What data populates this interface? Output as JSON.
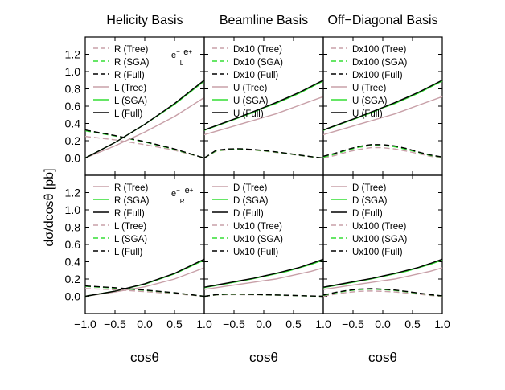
{
  "figure": {
    "ylabel": "dσ/dcosθ  [pb]",
    "xlabel": "cosθ",
    "xlim": [
      -1.0,
      1.0
    ],
    "ylim": [
      -0.2,
      1.4
    ],
    "y_ticks": [
      "0.0",
      "0.2",
      "0.4",
      "0.6",
      "0.8",
      "1.0",
      "1.2"
    ],
    "y_tick_values": [
      0.0,
      0.2,
      0.4,
      0.6,
      0.8,
      1.0,
      1.2
    ],
    "x_ticks_first": [
      "−1.0",
      "−0.5",
      "0.0",
      "0.5",
      "1.0"
    ],
    "x_ticks_other": [
      "−0.5",
      "0.0",
      "0.5",
      "1.0"
    ],
    "x_tick_values": [
      -1.0,
      -0.5,
      0.0,
      0.5,
      1.0
    ],
    "x_tick_values_other": [
      -0.5,
      0.0,
      0.5,
      1.0
    ]
  },
  "colors": {
    "tree": "#c8a0a8",
    "sga": "#33dd33",
    "full": "#000000"
  },
  "chart_data": [
    {
      "type": "line",
      "panel": "top-left",
      "title": "Helicity Basis",
      "annotation": {
        "main": "e",
        "sup1": "−",
        "sub": "L",
        "main2": "e",
        "sup2": "+"
      },
      "legend": [
        "R (Tree)",
        "R (SGA)",
        "R (Full)",
        "L (Tree)",
        "L (SGA)",
        "L (Full)"
      ],
      "x": [
        -1.0,
        -0.5,
        0.0,
        0.5,
        1.0
      ],
      "series": [
        {
          "name": "R (Tree)",
          "dash": true,
          "kind": "tree",
          "values": [
            0.25,
            0.21,
            0.155,
            0.09,
            0.0
          ]
        },
        {
          "name": "R (SGA)",
          "dash": true,
          "kind": "sga",
          "values": [
            0.315,
            0.255,
            0.185,
            0.1,
            0.0
          ]
        },
        {
          "name": "R (Full)",
          "dash": true,
          "kind": "full",
          "values": [
            0.325,
            0.26,
            0.19,
            0.105,
            0.0
          ]
        },
        {
          "name": "L (Tree)",
          "dash": false,
          "kind": "tree",
          "values": [
            0.0,
            0.14,
            0.3,
            0.48,
            0.7
          ]
        },
        {
          "name": "L (SGA)",
          "dash": false,
          "kind": "sga",
          "values": [
            0.0,
            0.18,
            0.39,
            0.62,
            0.89
          ]
        },
        {
          "name": "L (Full)",
          "dash": false,
          "kind": "full",
          "values": [
            0.0,
            0.18,
            0.39,
            0.63,
            0.9
          ]
        }
      ]
    },
    {
      "type": "line",
      "panel": "top-middle",
      "title": "Beamline Basis",
      "legend": [
        "Dx10 (Tree)",
        "Dx10 (SGA)",
        "Dx10 (Full)",
        "U (Tree)",
        "U (SGA)",
        "U (Full)"
      ],
      "x": [
        -1.0,
        -0.8,
        -0.6,
        -0.4,
        -0.2,
        0.0,
        0.2,
        0.4,
        0.6,
        0.8,
        1.0
      ],
      "series": [
        {
          "name": "Dx10 (Tree)",
          "dash": true,
          "kind": "tree",
          "values": [
            0.0,
            0.08,
            0.095,
            0.098,
            0.092,
            0.08,
            0.065,
            0.048,
            0.03,
            0.013,
            0.0
          ]
        },
        {
          "name": "Dx10 (SGA)",
          "dash": true,
          "kind": "sga",
          "values": [
            0.0,
            0.085,
            0.1,
            0.103,
            0.097,
            0.085,
            0.07,
            0.052,
            0.033,
            0.015,
            0.0
          ]
        },
        {
          "name": "Dx10 (Full)",
          "dash": true,
          "kind": "full",
          "values": [
            0.0,
            0.09,
            0.105,
            0.108,
            0.1,
            0.088,
            0.072,
            0.054,
            0.034,
            0.016,
            0.0
          ]
        },
        {
          "name": "U (Tree)",
          "dash": false,
          "kind": "tree",
          "values": [
            0.27,
            0.31,
            0.35,
            0.39,
            0.43,
            0.47,
            0.51,
            0.56,
            0.61,
            0.66,
            0.71
          ]
        },
        {
          "name": "U (SGA)",
          "dash": false,
          "kind": "sga",
          "values": [
            0.32,
            0.37,
            0.42,
            0.47,
            0.52,
            0.58,
            0.63,
            0.69,
            0.75,
            0.82,
            0.89
          ]
        },
        {
          "name": "U (Full)",
          "dash": false,
          "kind": "full",
          "values": [
            0.325,
            0.375,
            0.425,
            0.475,
            0.53,
            0.585,
            0.64,
            0.7,
            0.76,
            0.83,
            0.9
          ]
        }
      ]
    },
    {
      "type": "line",
      "panel": "top-right",
      "title": "Off−Diagonal Basis",
      "legend": [
        "Dx100 (Tree)",
        "Dx100 (SGA)",
        "Dx100 (Full)",
        "U (Tree)",
        "U (SGA)",
        "U (Full)"
      ],
      "x": [
        -1.0,
        -0.8,
        -0.6,
        -0.4,
        -0.2,
        0.0,
        0.2,
        0.4,
        0.6,
        0.8,
        1.0
      ],
      "series": [
        {
          "name": "Dx100 (Tree)",
          "dash": true,
          "kind": "tree",
          "values": [
            0.0,
            0.03,
            0.07,
            0.1,
            0.12,
            0.12,
            0.105,
            0.08,
            0.05,
            0.02,
            0.0
          ]
        },
        {
          "name": "Dx100 (SGA)",
          "dash": true,
          "kind": "sga",
          "values": [
            0.01,
            0.045,
            0.09,
            0.125,
            0.145,
            0.145,
            0.13,
            0.1,
            0.065,
            0.03,
            0.01
          ]
        },
        {
          "name": "Dx100 (Full)",
          "dash": true,
          "kind": "full",
          "values": [
            0.02,
            0.055,
            0.1,
            0.135,
            0.155,
            0.155,
            0.14,
            0.11,
            0.07,
            0.035,
            0.012
          ]
        },
        {
          "name": "U (Tree)",
          "dash": false,
          "kind": "tree",
          "values": [
            0.27,
            0.31,
            0.35,
            0.39,
            0.43,
            0.47,
            0.51,
            0.56,
            0.61,
            0.66,
            0.71
          ]
        },
        {
          "name": "U (SGA)",
          "dash": false,
          "kind": "sga",
          "values": [
            0.32,
            0.37,
            0.42,
            0.47,
            0.52,
            0.58,
            0.63,
            0.69,
            0.75,
            0.82,
            0.89
          ]
        },
        {
          "name": "U (Full)",
          "dash": false,
          "kind": "full",
          "values": [
            0.325,
            0.375,
            0.425,
            0.475,
            0.53,
            0.585,
            0.64,
            0.7,
            0.76,
            0.83,
            0.9
          ]
        }
      ]
    },
    {
      "type": "line",
      "panel": "bottom-left",
      "annotation": {
        "main": "e",
        "sup1": "−",
        "sub": "R",
        "main2": "e",
        "sup2": "+"
      },
      "legend": [
        "R (Tree)",
        "R (SGA)",
        "R (Full)",
        "L (Tree)",
        "L (SGA)",
        "L (Full)"
      ],
      "x": [
        -1.0,
        -0.5,
        0.0,
        0.5,
        1.0
      ],
      "series": [
        {
          "name": "R (Tree)",
          "dash": false,
          "kind": "tree",
          "values": [
            0.0,
            0.05,
            0.11,
            0.2,
            0.33
          ]
        },
        {
          "name": "R (SGA)",
          "dash": false,
          "kind": "sga",
          "values": [
            0.0,
            0.06,
            0.14,
            0.26,
            0.42
          ]
        },
        {
          "name": "R (Full)",
          "dash": false,
          "kind": "full",
          "values": [
            0.0,
            0.06,
            0.145,
            0.265,
            0.43
          ]
        },
        {
          "name": "L (Tree)",
          "dash": true,
          "kind": "tree",
          "values": [
            0.09,
            0.075,
            0.055,
            0.03,
            0.0
          ]
        },
        {
          "name": "L (SGA)",
          "dash": true,
          "kind": "sga",
          "values": [
            0.115,
            0.095,
            0.07,
            0.04,
            0.0
          ]
        },
        {
          "name": "L (Full)",
          "dash": true,
          "kind": "full",
          "values": [
            0.12,
            0.1,
            0.073,
            0.042,
            0.0
          ]
        }
      ]
    },
    {
      "type": "line",
      "panel": "bottom-middle",
      "legend": [
        "D (Tree)",
        "D (SGA)",
        "D (Full)",
        "Ux10 (Tree)",
        "Ux10 (SGA)",
        "Ux10 (Full)"
      ],
      "x": [
        -1.0,
        -0.8,
        -0.6,
        -0.4,
        -0.2,
        0.0,
        0.2,
        0.4,
        0.6,
        0.8,
        1.0
      ],
      "series": [
        {
          "name": "D (Tree)",
          "dash": false,
          "kind": "tree",
          "values": [
            0.08,
            0.1,
            0.12,
            0.14,
            0.16,
            0.18,
            0.2,
            0.23,
            0.26,
            0.29,
            0.33
          ]
        },
        {
          "name": "D (SGA)",
          "dash": false,
          "kind": "sga",
          "values": [
            0.1,
            0.125,
            0.15,
            0.175,
            0.2,
            0.23,
            0.26,
            0.29,
            0.33,
            0.37,
            0.42
          ]
        },
        {
          "name": "D (Full)",
          "dash": false,
          "kind": "full",
          "values": [
            0.105,
            0.13,
            0.155,
            0.18,
            0.205,
            0.235,
            0.265,
            0.3,
            0.335,
            0.38,
            0.43
          ]
        },
        {
          "name": "Ux10 (Tree)",
          "dash": true,
          "kind": "tree",
          "values": [
            0.0,
            0.015,
            0.02,
            0.02,
            0.018,
            0.015,
            0.012,
            0.009,
            0.006,
            0.003,
            0.0
          ]
        },
        {
          "name": "Ux10 (SGA)",
          "dash": true,
          "kind": "sga",
          "values": [
            0.0,
            0.018,
            0.024,
            0.024,
            0.022,
            0.018,
            0.015,
            0.011,
            0.007,
            0.003,
            0.0
          ]
        },
        {
          "name": "Ux10 (Full)",
          "dash": true,
          "kind": "full",
          "values": [
            0.0,
            0.02,
            0.026,
            0.026,
            0.023,
            0.019,
            0.016,
            0.012,
            0.008,
            0.004,
            0.0
          ]
        }
      ]
    },
    {
      "type": "line",
      "panel": "bottom-right",
      "legend": [
        "D (Tree)",
        "D (SGA)",
        "D (Full)",
        "Ux100 (Tree)",
        "Ux100 (SGA)",
        "Ux100 (Full)"
      ],
      "x": [
        -1.0,
        -0.8,
        -0.6,
        -0.4,
        -0.2,
        0.0,
        0.2,
        0.4,
        0.6,
        0.8,
        1.0
      ],
      "series": [
        {
          "name": "D (Tree)",
          "dash": false,
          "kind": "tree",
          "values": [
            0.08,
            0.1,
            0.12,
            0.14,
            0.16,
            0.18,
            0.2,
            0.23,
            0.26,
            0.29,
            0.33
          ]
        },
        {
          "name": "D (SGA)",
          "dash": false,
          "kind": "sga",
          "values": [
            0.1,
            0.125,
            0.15,
            0.175,
            0.2,
            0.23,
            0.26,
            0.29,
            0.33,
            0.37,
            0.42
          ]
        },
        {
          "name": "D (Full)",
          "dash": false,
          "kind": "full",
          "values": [
            0.105,
            0.13,
            0.155,
            0.18,
            0.205,
            0.235,
            0.265,
            0.3,
            0.335,
            0.38,
            0.43
          ]
        },
        {
          "name": "Ux100 (Tree)",
          "dash": true,
          "kind": "tree",
          "values": [
            0.0,
            0.025,
            0.045,
            0.058,
            0.062,
            0.058,
            0.05,
            0.038,
            0.024,
            0.01,
            0.0
          ]
        },
        {
          "name": "Ux100 (SGA)",
          "dash": true,
          "kind": "sga",
          "values": [
            0.01,
            0.04,
            0.063,
            0.078,
            0.083,
            0.078,
            0.068,
            0.053,
            0.035,
            0.017,
            0.005
          ]
        },
        {
          "name": "Ux100 (Full)",
          "dash": true,
          "kind": "full",
          "values": [
            0.015,
            0.045,
            0.068,
            0.083,
            0.088,
            0.083,
            0.073,
            0.057,
            0.038,
            0.019,
            0.006
          ]
        }
      ]
    }
  ]
}
